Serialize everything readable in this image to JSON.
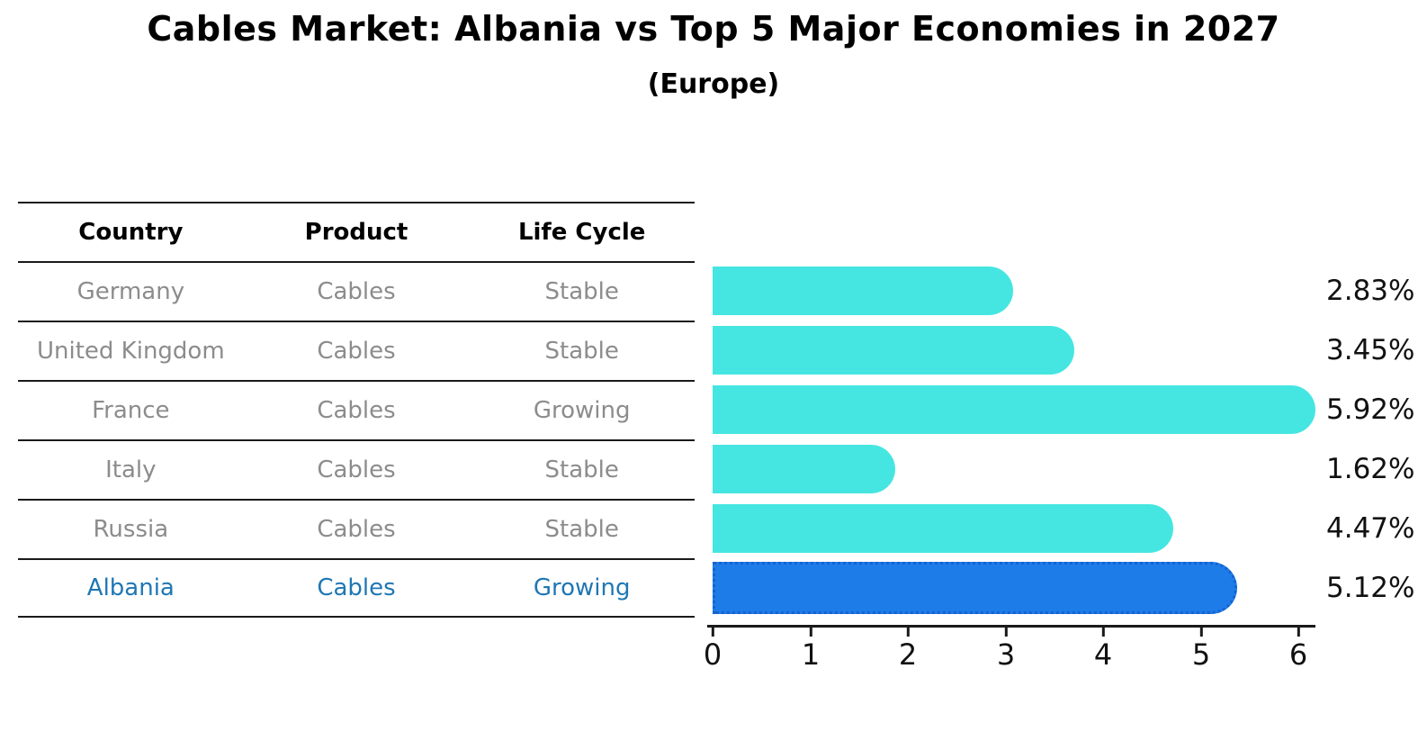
{
  "header": {
    "title": "Cables Market: Albania vs Top 5 Major Economies in 2027",
    "subtitle": "(Europe)"
  },
  "table": {
    "columns": [
      "Country",
      "Product",
      "Life Cycle"
    ],
    "rows": [
      {
        "country": "Germany",
        "product": "Cables",
        "life_cycle": "Stable",
        "highlighted": false
      },
      {
        "country": "United Kingdom",
        "product": "Cables",
        "life_cycle": "Stable",
        "highlighted": false
      },
      {
        "country": "France",
        "product": "Cables",
        "life_cycle": "Growing",
        "highlighted": false
      },
      {
        "country": "Italy",
        "product": "Cables",
        "life_cycle": "Stable",
        "highlighted": false
      },
      {
        "country": "Russia",
        "product": "Cables",
        "life_cycle": "Stable",
        "highlighted": false
      },
      {
        "country": "Albania",
        "product": "Cables",
        "life_cycle": "Growing",
        "highlighted": true
      }
    ]
  },
  "chart_data": {
    "type": "bar",
    "orientation": "horizontal",
    "title": "Cables Market: Albania vs Top 5 Major Economies in 2027",
    "subtitle": "(Europe)",
    "categories": [
      "Germany",
      "United Kingdom",
      "France",
      "Italy",
      "Russia",
      "Albania"
    ],
    "values": [
      2.83,
      3.45,
      5.92,
      1.62,
      4.47,
      5.12
    ],
    "value_labels": [
      "2.83%",
      "3.45%",
      "5.92%",
      "1.62%",
      "4.47%",
      "5.12%"
    ],
    "x_ticks": [
      "0",
      "1",
      "2",
      "3",
      "4",
      "5",
      "6"
    ],
    "xlim": [
      0,
      6.3
    ],
    "grid": false,
    "legend": false,
    "highlight_index": 5,
    "colors": {
      "bar": "#45e6e1",
      "highlight_bar_fill": "#1e7ce9",
      "highlight_bar_border": "#1563cf",
      "highlight_text": "#1f77b4",
      "muted_text": "#8c8c8c",
      "axis": "#1a1a1a"
    }
  }
}
